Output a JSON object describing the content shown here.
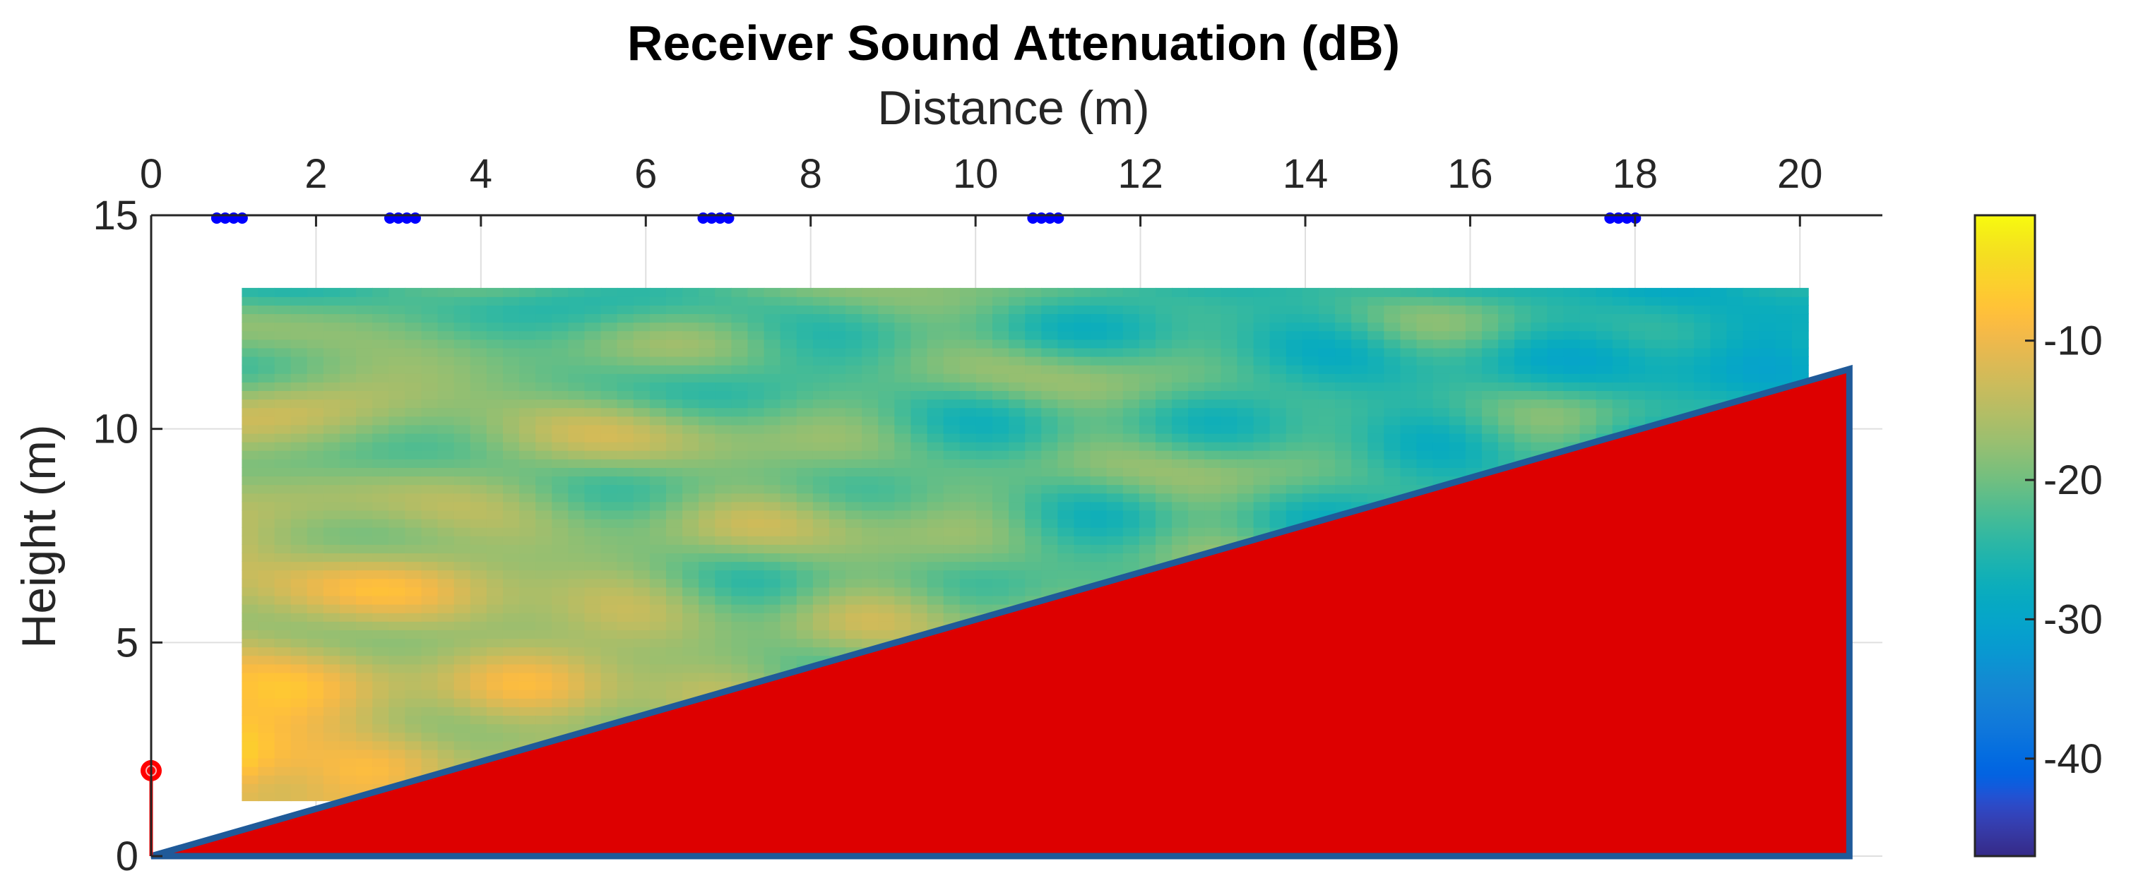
{
  "chart_data": {
    "type": "heatmap",
    "title": "Receiver Sound Attenuation (dB)",
    "xlabel": "Distance (m)",
    "ylabel": "Height (m)",
    "x_axis_location": "top",
    "xlim": [
      0,
      21
    ],
    "ylim": [
      0,
      15
    ],
    "x_ticks": [
      "0",
      "2",
      "4",
      "6",
      "8",
      "10",
      "12",
      "14",
      "16",
      "18",
      "20"
    ],
    "y_ticks": [
      "0",
      "5",
      "10",
      "15"
    ],
    "grid": true,
    "field": {
      "x_range": [
        1.1,
        20.1
      ],
      "y_range": [
        1.3,
        13.3
      ],
      "grid_size": [
        96,
        60
      ],
      "value_min": -47,
      "value_max": -1
    },
    "colorbar": {
      "range": [
        -47,
        -1
      ],
      "ticks": [
        "-10",
        "-20",
        "-30",
        "-40"
      ],
      "colormap": "parula"
    },
    "source": {
      "x": 0,
      "y": 2,
      "color": "#ff0000"
    },
    "sensors": {
      "color": "#0000ff",
      "x": [
        0.95,
        3.05,
        6.85,
        10.85,
        17.85
      ],
      "y": 15
    },
    "terrain": {
      "points": [
        [
          0,
          0
        ],
        [
          20.6,
          11.4
        ],
        [
          20.6,
          0
        ]
      ],
      "fill_color": "#dd0000",
      "edge_color": "#1f5a99"
    }
  }
}
